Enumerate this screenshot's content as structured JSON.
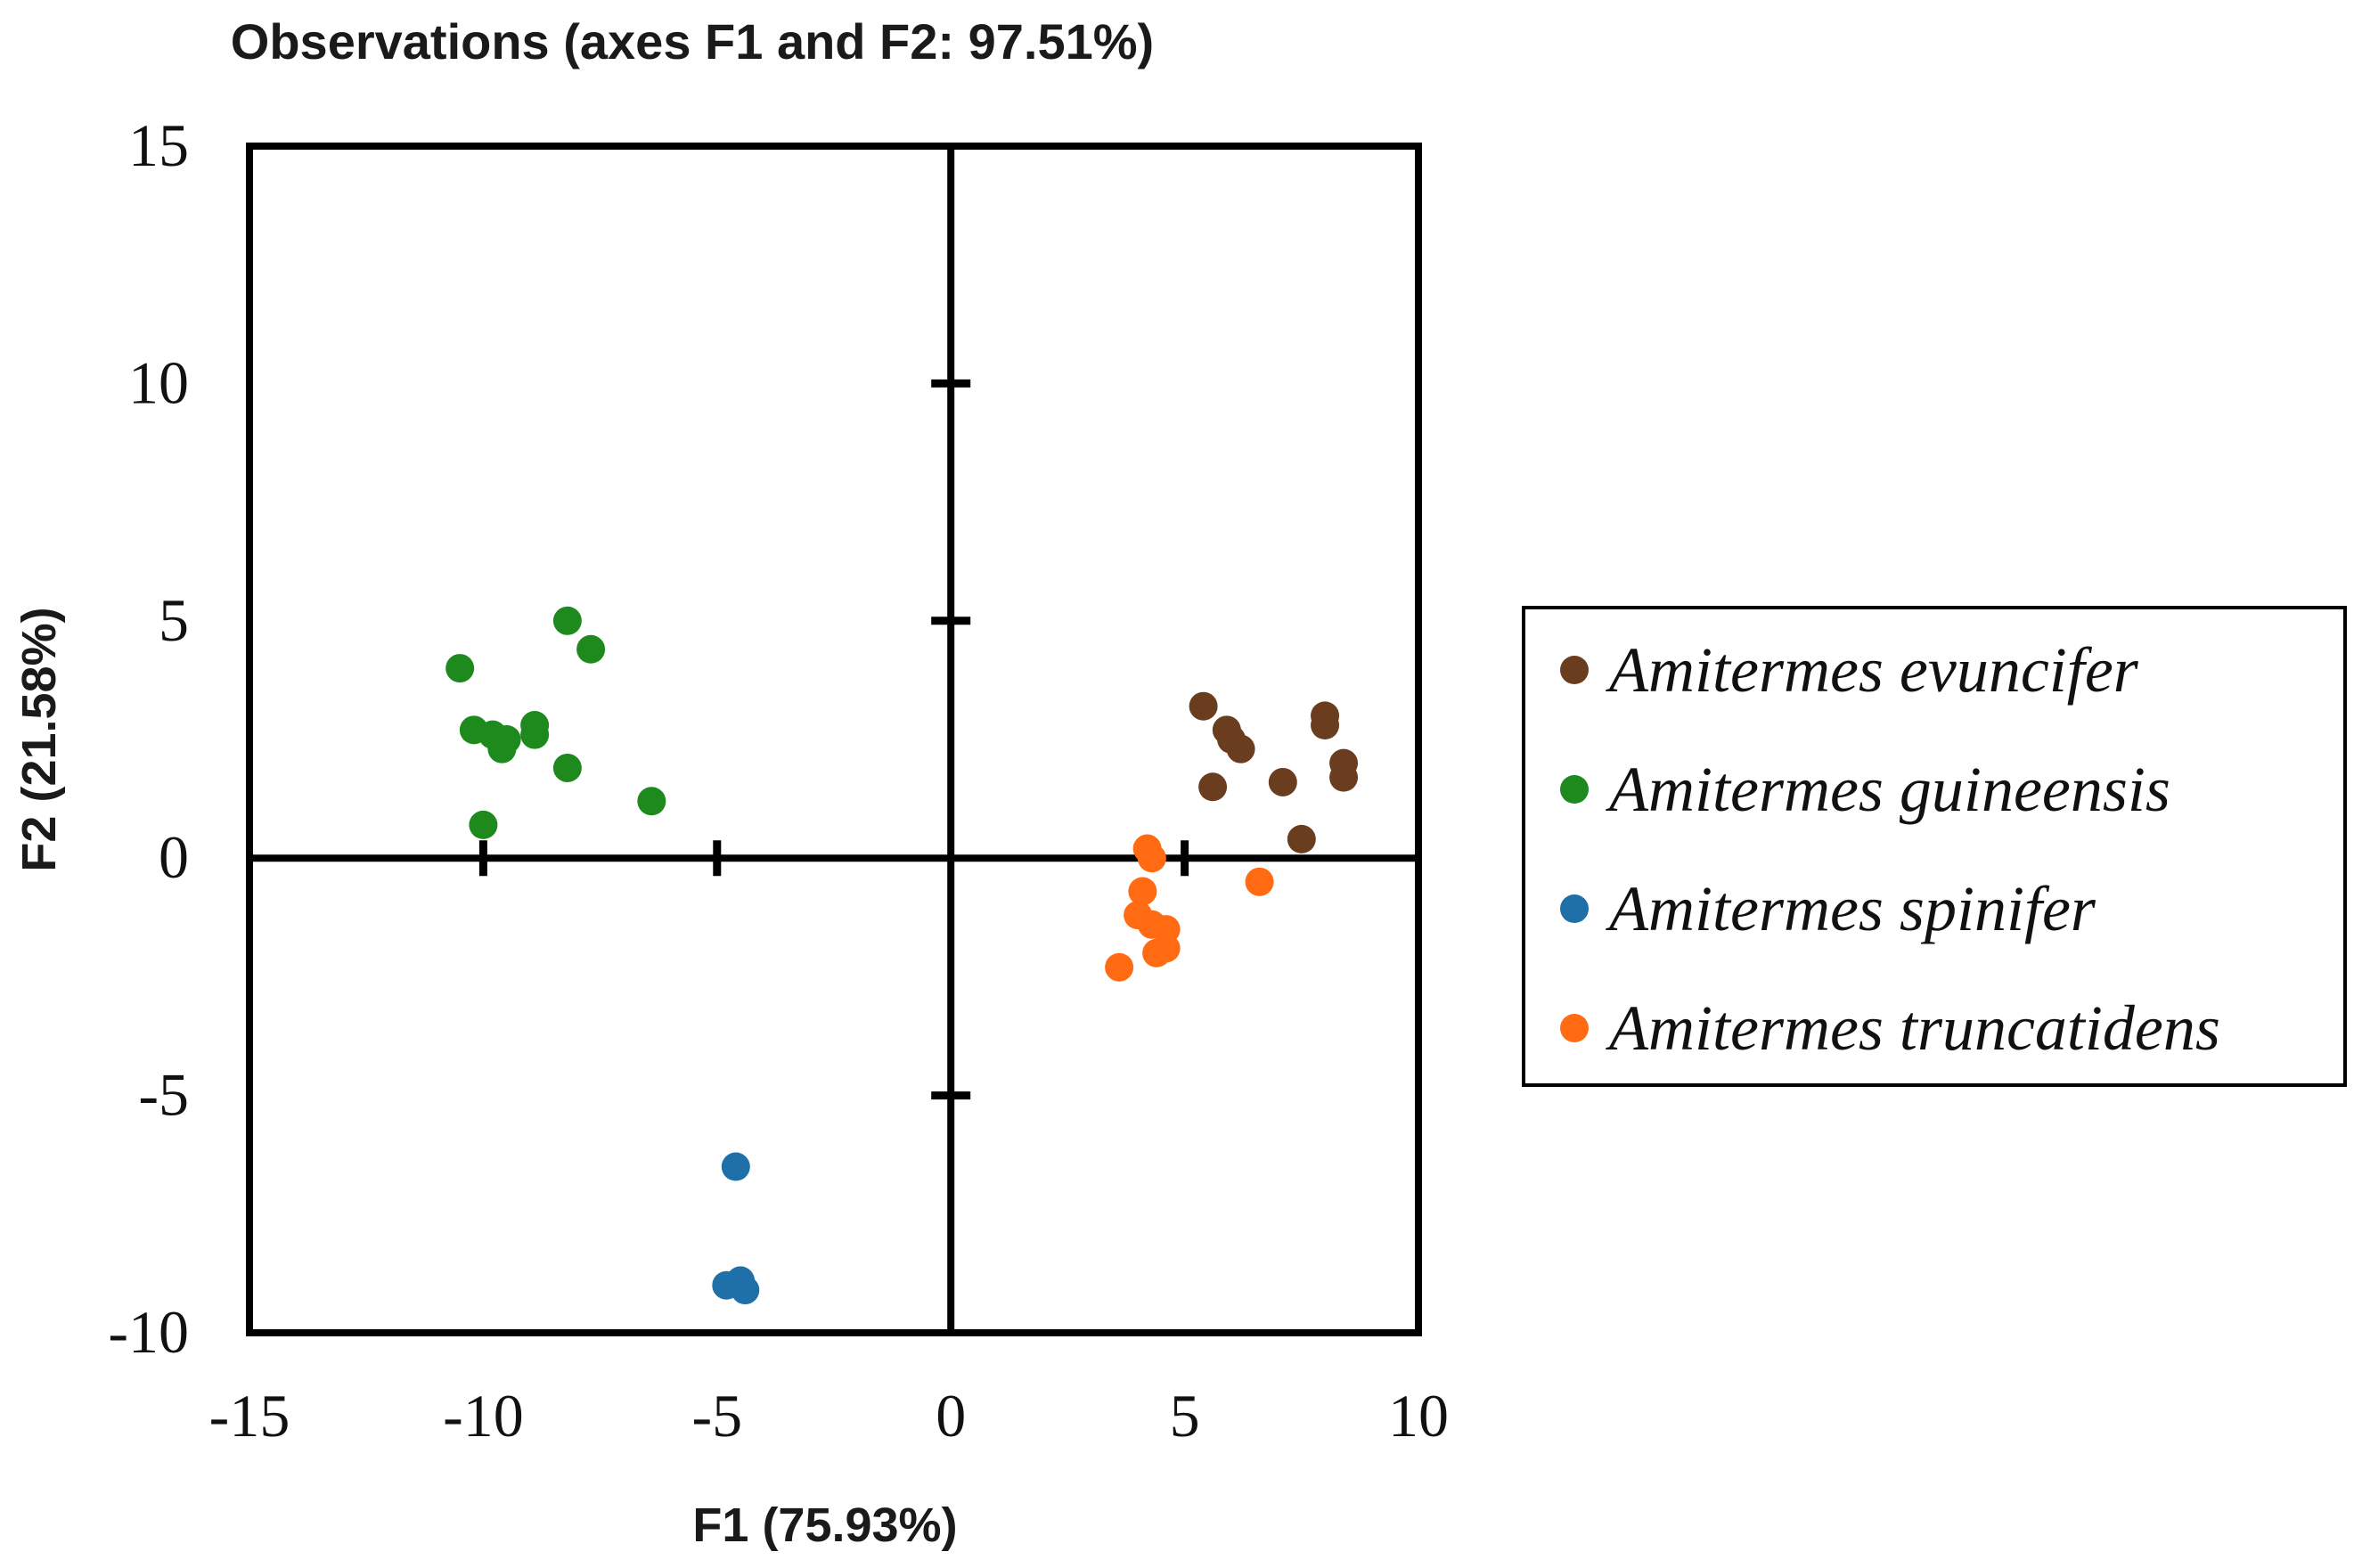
{
  "chart_data": {
    "type": "scatter",
    "title": "Observations (axes F1 and F2: 97.51%)",
    "xlabel": "F1 (75.93%)",
    "ylabel": "F2 (21.58%)",
    "xlim": [
      -15,
      10
    ],
    "ylim": [
      -10,
      15
    ],
    "x_ticks": [
      -15,
      -10,
      -5,
      0,
      5,
      10
    ],
    "y_ticks": [
      15,
      10,
      5,
      0,
      -5,
      -10
    ],
    "legend_position": "right",
    "series": [
      {
        "name": "Amitermes evuncifer",
        "color": "#6b3d1f",
        "points": [
          [
            5.4,
            3.2
          ],
          [
            5.9,
            2.7
          ],
          [
            6.0,
            2.5
          ],
          [
            6.2,
            2.3
          ],
          [
            5.6,
            1.5
          ],
          [
            7.1,
            1.6
          ],
          [
            8.0,
            3.0
          ],
          [
            8.0,
            2.8
          ],
          [
            8.4,
            2.0
          ],
          [
            8.4,
            1.7
          ],
          [
            7.5,
            0.4
          ]
        ]
      },
      {
        "name": "Amitermes guineensis",
        "color": "#1e8a1e",
        "points": [
          [
            -10.5,
            4.0
          ],
          [
            -10.2,
            2.7
          ],
          [
            -9.8,
            2.6
          ],
          [
            -9.6,
            2.3
          ],
          [
            -9.5,
            2.5
          ],
          [
            -8.9,
            2.8
          ],
          [
            -8.9,
            2.6
          ],
          [
            -8.2,
            5.0
          ],
          [
            -7.7,
            4.4
          ],
          [
            -8.2,
            1.9
          ],
          [
            -6.4,
            1.2
          ],
          [
            -10.0,
            0.7
          ]
        ]
      },
      {
        "name": "Amitermes spinifer",
        "color": "#1f6fa8",
        "points": [
          [
            -4.6,
            -6.5
          ],
          [
            -4.8,
            -9.0
          ],
          [
            -4.5,
            -8.9
          ],
          [
            -4.4,
            -9.1
          ]
        ]
      },
      {
        "name": "Amitermes truncatidens",
        "color": "#ff6a13",
        "points": [
          [
            4.2,
            0.2
          ],
          [
            4.3,
            0.0
          ],
          [
            4.1,
            -0.7
          ],
          [
            4.0,
            -1.2
          ],
          [
            4.3,
            -1.4
          ],
          [
            4.6,
            -1.5
          ],
          [
            4.6,
            -1.9
          ],
          [
            4.4,
            -2.0
          ],
          [
            3.6,
            -2.3
          ],
          [
            6.6,
            -0.5
          ]
        ]
      }
    ]
  }
}
